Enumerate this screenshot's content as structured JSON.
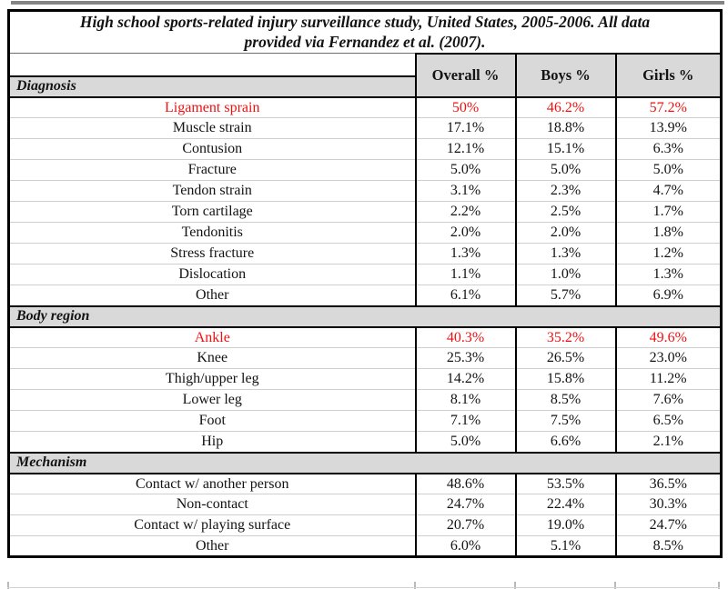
{
  "title": {
    "lines": [
      "High school sports-related injury surveillance study, United States, 2005-2006. All data",
      "provided via Fernandez et al. (2007)."
    ]
  },
  "columns": [
    "Overall %",
    "Boys %",
    "Girls %"
  ],
  "colors": {
    "highlight_red": "#ee1111",
    "band_gray": "#d9d9d9",
    "border_black": "#000000"
  },
  "sections": [
    {
      "label": "Diagnosis",
      "rows": [
        {
          "label": "Ligament sprain",
          "values": [
            "50%",
            "46.2%",
            "57.2%"
          ],
          "highlight": true
        },
        {
          "label": "Muscle strain",
          "values": [
            "17.1%",
            "18.8%",
            "13.9%"
          ],
          "highlight": false
        },
        {
          "label": "Contusion",
          "values": [
            "12.1%",
            "15.1%",
            "6.3%"
          ],
          "highlight": false
        },
        {
          "label": "Fracture",
          "values": [
            "5.0%",
            "5.0%",
            "5.0%"
          ],
          "highlight": false
        },
        {
          "label": "Tendon strain",
          "values": [
            "3.1%",
            "2.3%",
            "4.7%"
          ],
          "highlight": false
        },
        {
          "label": "Torn cartilage",
          "values": [
            "2.2%",
            "2.5%",
            "1.7%"
          ],
          "highlight": false
        },
        {
          "label": "Tendonitis",
          "values": [
            "2.0%",
            "2.0%",
            "1.8%"
          ],
          "highlight": false
        },
        {
          "label": "Stress fracture",
          "values": [
            "1.3%",
            "1.3%",
            "1.2%"
          ],
          "highlight": false
        },
        {
          "label": "Dislocation",
          "values": [
            "1.1%",
            "1.0%",
            "1.3%"
          ],
          "highlight": false
        },
        {
          "label": "Other",
          "values": [
            "6.1%",
            "5.7%",
            "6.9%"
          ],
          "highlight": false
        }
      ]
    },
    {
      "label": "Body region",
      "rows": [
        {
          "label": "Ankle",
          "values": [
            "40.3%",
            "35.2%",
            "49.6%"
          ],
          "highlight": true
        },
        {
          "label": "Knee",
          "values": [
            "25.3%",
            "26.5%",
            "23.0%"
          ],
          "highlight": false
        },
        {
          "label": "Thigh/upper leg",
          "values": [
            "14.2%",
            "15.8%",
            "11.2%"
          ],
          "highlight": false
        },
        {
          "label": "Lower leg",
          "values": [
            "8.1%",
            "8.5%",
            "7.6%"
          ],
          "highlight": false
        },
        {
          "label": "Foot",
          "values": [
            "7.1%",
            "7.5%",
            "6.5%"
          ],
          "highlight": false
        },
        {
          "label": "Hip",
          "values": [
            "5.0%",
            "6.6%",
            "2.1%"
          ],
          "highlight": false
        }
      ]
    },
    {
      "label": "Mechanism",
      "rows": [
        {
          "label": "Contact w/ another person",
          "values": [
            "48.6%",
            "53.5%",
            "36.5%"
          ],
          "highlight": false
        },
        {
          "label": "Non-contact",
          "values": [
            "24.7%",
            "22.4%",
            "30.3%"
          ],
          "highlight": false
        },
        {
          "label": "Contact w/ playing surface",
          "values": [
            "20.7%",
            "19.0%",
            "24.7%"
          ],
          "highlight": false
        },
        {
          "label": "Other",
          "values": [
            "6.0%",
            "5.1%",
            "8.5%"
          ],
          "highlight": false
        }
      ]
    }
  ]
}
